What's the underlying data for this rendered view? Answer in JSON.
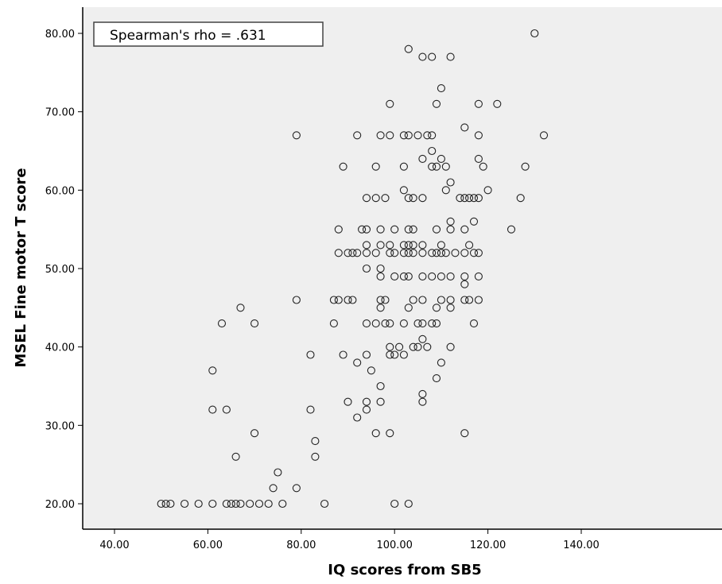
{
  "chart_data": {
    "type": "scatter",
    "title": "",
    "xlabel": "IQ scores from SB5",
    "ylabel": "MSEL Fine motor T score",
    "xlim": [
      35,
      142
    ],
    "ylim": [
      17,
      83
    ],
    "xticks": [
      40,
      60,
      80,
      100,
      120,
      140
    ],
    "xtick_labels": [
      "40.00",
      "60.00",
      "80.00",
      "100.00",
      "120.00",
      "140.00"
    ],
    "yticks": [
      20,
      30,
      40,
      50,
      60,
      70,
      80
    ],
    "ytick_labels": [
      "20.00",
      "30.00",
      "40.00",
      "50.00",
      "60.00",
      "70.00",
      "80.00"
    ],
    "annotation": "Spearman's rho = .631",
    "grid": false,
    "colors": {
      "plot_background": "#efefef",
      "marker_stroke": "#222222",
      "axis": "#000000"
    },
    "series": [
      {
        "points": [
          [
            130,
            80
          ],
          [
            103,
            78
          ],
          [
            106,
            77
          ],
          [
            108,
            77
          ],
          [
            112,
            77
          ],
          [
            110,
            73
          ],
          [
            99,
            71
          ],
          [
            109,
            71
          ],
          [
            118,
            71
          ],
          [
            122,
            71
          ],
          [
            79,
            67
          ],
          [
            92,
            67
          ],
          [
            97,
            67
          ],
          [
            99,
            67
          ],
          [
            102,
            67
          ],
          [
            103,
            67
          ],
          [
            105,
            67
          ],
          [
            107,
            67
          ],
          [
            108,
            67
          ],
          [
            118,
            67
          ],
          [
            132,
            67
          ],
          [
            115,
            68
          ],
          [
            108,
            65
          ],
          [
            106,
            64
          ],
          [
            110,
            64
          ],
          [
            118,
            64
          ],
          [
            89,
            63
          ],
          [
            96,
            63
          ],
          [
            102,
            63
          ],
          [
            108,
            63
          ],
          [
            109,
            63
          ],
          [
            111,
            63
          ],
          [
            119,
            63
          ],
          [
            128,
            63
          ],
          [
            112,
            61
          ],
          [
            102,
            60
          ],
          [
            111,
            60
          ],
          [
            120,
            60
          ],
          [
            94,
            59
          ],
          [
            96,
            59
          ],
          [
            98,
            59
          ],
          [
            103,
            59
          ],
          [
            104,
            59
          ],
          [
            106,
            59
          ],
          [
            114,
            59
          ],
          [
            115,
            59
          ],
          [
            116,
            59
          ],
          [
            117,
            59
          ],
          [
            118,
            59
          ],
          [
            127,
            59
          ],
          [
            112,
            56
          ],
          [
            117,
            56
          ],
          [
            97,
            55
          ],
          [
            100,
            55
          ],
          [
            103,
            55
          ],
          [
            104,
            55
          ],
          [
            109,
            55
          ],
          [
            112,
            55
          ],
          [
            115,
            55
          ],
          [
            125,
            55
          ],
          [
            88,
            55
          ],
          [
            93,
            55
          ],
          [
            94,
            55
          ],
          [
            94,
            53
          ],
          [
            97,
            53
          ],
          [
            99,
            53
          ],
          [
            102,
            53
          ],
          [
            103,
            53
          ],
          [
            104,
            53
          ],
          [
            106,
            53
          ],
          [
            110,
            53
          ],
          [
            116,
            53
          ],
          [
            88,
            52
          ],
          [
            90,
            52
          ],
          [
            91,
            52
          ],
          [
            92,
            52
          ],
          [
            94,
            52
          ],
          [
            96,
            52
          ],
          [
            99,
            52
          ],
          [
            100,
            52
          ],
          [
            102,
            52
          ],
          [
            103,
            52
          ],
          [
            104,
            52
          ],
          [
            106,
            52
          ],
          [
            108,
            52
          ],
          [
            109,
            52
          ],
          [
            110,
            52
          ],
          [
            111,
            52
          ],
          [
            113,
            52
          ],
          [
            115,
            52
          ],
          [
            117,
            52
          ],
          [
            118,
            52
          ],
          [
            94,
            50
          ],
          [
            97,
            50
          ],
          [
            97,
            49
          ],
          [
            100,
            49
          ],
          [
            102,
            49
          ],
          [
            103,
            49
          ],
          [
            106,
            49
          ],
          [
            108,
            49
          ],
          [
            110,
            49
          ],
          [
            112,
            49
          ],
          [
            115,
            49
          ],
          [
            118,
            49
          ],
          [
            115,
            48
          ],
          [
            87,
            46
          ],
          [
            88,
            46
          ],
          [
            90,
            46
          ],
          [
            91,
            46
          ],
          [
            97,
            46
          ],
          [
            98,
            46
          ],
          [
            104,
            46
          ],
          [
            106,
            46
          ],
          [
            110,
            46
          ],
          [
            112,
            46
          ],
          [
            115,
            46
          ],
          [
            116,
            46
          ],
          [
            118,
            46
          ],
          [
            97,
            45
          ],
          [
            103,
            45
          ],
          [
            109,
            45
          ],
          [
            112,
            45
          ],
          [
            79,
            46
          ],
          [
            67,
            45
          ],
          [
            87,
            43
          ],
          [
            94,
            43
          ],
          [
            96,
            43
          ],
          [
            98,
            43
          ],
          [
            99,
            43
          ],
          [
            102,
            43
          ],
          [
            105,
            43
          ],
          [
            106,
            43
          ],
          [
            108,
            43
          ],
          [
            109,
            43
          ],
          [
            117,
            43
          ],
          [
            63,
            43
          ],
          [
            70,
            43
          ],
          [
            106,
            41
          ],
          [
            99,
            40
          ],
          [
            101,
            40
          ],
          [
            104,
            40
          ],
          [
            105,
            40
          ],
          [
            107,
            40
          ],
          [
            112,
            40
          ],
          [
            82,
            39
          ],
          [
            89,
            39
          ],
          [
            94,
            39
          ],
          [
            99,
            39
          ],
          [
            100,
            39
          ],
          [
            102,
            39
          ],
          [
            92,
            38
          ],
          [
            110,
            38
          ],
          [
            95,
            37
          ],
          [
            61,
            37
          ],
          [
            109,
            36
          ],
          [
            97,
            35
          ],
          [
            106,
            34
          ],
          [
            90,
            33
          ],
          [
            94,
            33
          ],
          [
            97,
            33
          ],
          [
            106,
            33
          ],
          [
            94,
            32
          ],
          [
            61,
            32
          ],
          [
            64,
            32
          ],
          [
            82,
            32
          ],
          [
            92,
            31
          ],
          [
            70,
            29
          ],
          [
            96,
            29
          ],
          [
            99,
            29
          ],
          [
            115,
            29
          ],
          [
            83,
            28
          ],
          [
            66,
            26
          ],
          [
            83,
            26
          ],
          [
            75,
            24
          ],
          [
            74,
            22
          ],
          [
            79,
            22
          ],
          [
            50,
            20
          ],
          [
            51,
            20
          ],
          [
            52,
            20
          ],
          [
            55,
            20
          ],
          [
            58,
            20
          ],
          [
            61,
            20
          ],
          [
            64,
            20
          ],
          [
            65,
            20
          ],
          [
            66,
            20
          ],
          [
            67,
            20
          ],
          [
            69,
            20
          ],
          [
            71,
            20
          ],
          [
            73,
            20
          ],
          [
            76,
            20
          ],
          [
            85,
            20
          ],
          [
            100,
            20
          ],
          [
            103,
            20
          ]
        ]
      }
    ]
  }
}
